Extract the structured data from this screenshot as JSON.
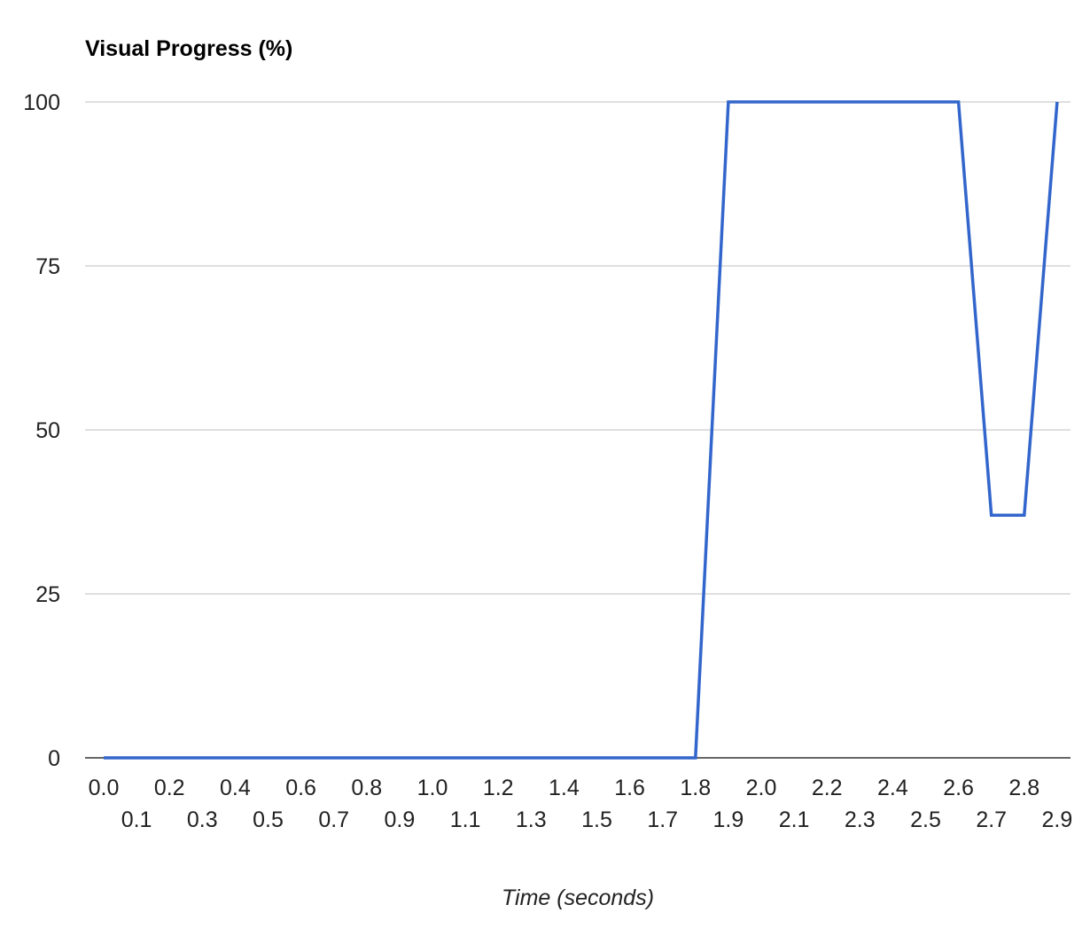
{
  "chart_data": {
    "type": "line",
    "title": "Visual Progress (%)",
    "xlabel": "Time (seconds)",
    "ylabel": "",
    "x": [
      "0.0",
      "0.1",
      "0.2",
      "0.3",
      "0.4",
      "0.5",
      "0.6",
      "0.7",
      "0.8",
      "0.9",
      "1.0",
      "1.1",
      "1.2",
      "1.3",
      "1.4",
      "1.5",
      "1.6",
      "1.7",
      "1.8",
      "1.9",
      "2.0",
      "2.1",
      "2.2",
      "2.3",
      "2.4",
      "2.5",
      "2.6",
      "2.7",
      "2.8",
      "2.9"
    ],
    "series": [
      {
        "values": [
          0,
          0,
          0,
          0,
          0,
          0,
          0,
          0,
          0,
          0,
          0,
          0,
          0,
          0,
          0,
          0,
          0,
          0,
          0,
          100,
          100,
          100,
          100,
          100,
          100,
          100,
          100,
          37,
          37,
          100
        ],
        "color": "#3366cc"
      }
    ],
    "ylim": [
      0,
      100
    ],
    "yticks": [
      "0",
      "25",
      "50",
      "75",
      "100"
    ],
    "grid": true,
    "legend": "none",
    "colors": {
      "line": "#3366cc",
      "grid": "#cccccc",
      "baseline": "#333333",
      "text": "#222222"
    }
  }
}
